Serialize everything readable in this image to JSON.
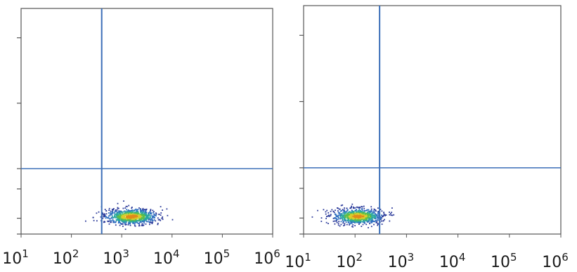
{
  "chart_data": [
    {
      "type": "scatter",
      "x_scale": "log",
      "x_range": [
        10,
        1000000
      ],
      "x_ticks": [
        {
          "base": "10",
          "exp": "1"
        },
        {
          "base": "10",
          "exp": "2"
        },
        {
          "base": "10",
          "exp": "3"
        },
        {
          "base": "10",
          "exp": "4"
        },
        {
          "base": "10",
          "exp": "5"
        },
        {
          "base": "10",
          "exp": "6"
        }
      ],
      "gate_x": 400,
      "gate_y_fraction": 0.29,
      "population": {
        "x_min": 200,
        "x_max": 4000,
        "x_center": 1500,
        "y_fraction": 0.08
      },
      "grid": false
    },
    {
      "type": "scatter",
      "x_scale": "log",
      "x_range": [
        10,
        1000000
      ],
      "x_ticks": [
        {
          "base": "10",
          "exp": "1"
        },
        {
          "base": "10",
          "exp": "2"
        },
        {
          "base": "10",
          "exp": "3"
        },
        {
          "base": "10",
          "exp": "4"
        },
        {
          "base": "10",
          "exp": "5"
        },
        {
          "base": "10",
          "exp": "6"
        }
      ],
      "gate_x": 300,
      "gate_y_fraction": 0.29,
      "population": {
        "x_min": 20,
        "x_max": 300,
        "x_center": 110,
        "y_fraction": 0.08
      },
      "grid": false
    }
  ],
  "colors": {
    "frame": "#555555",
    "gate": "#3c6fb8",
    "density": [
      "#2b3a9a",
      "#2f6fc0",
      "#2aa7a0",
      "#5cbf4a",
      "#d9cc2a",
      "#e08a1a"
    ]
  }
}
